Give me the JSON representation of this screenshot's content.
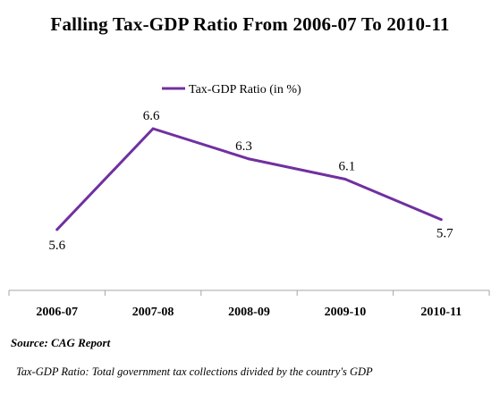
{
  "chart_data": {
    "type": "line",
    "title": "Falling Tax-GDP Ratio From 2006-07 To 2010-11",
    "categories": [
      "2006-07",
      "2007-08",
      "2008-09",
      "2009-10",
      "2010-11"
    ],
    "series": [
      {
        "name": "Tax-GDP Ratio (in %)",
        "values": [
          5.6,
          6.6,
          6.3,
          6.1,
          5.7
        ],
        "labels": [
          "5.6",
          "6.6",
          "6.3",
          "6.1",
          "5.7"
        ],
        "color": "#7030a0"
      }
    ],
    "ylim": [
      5.0,
      7.0
    ],
    "grid": false,
    "legend": "top"
  },
  "notes": {
    "source": "Source: CAG Report",
    "definition": "Tax-GDP Ratio: Total government tax collections divided by the country's GDP"
  }
}
